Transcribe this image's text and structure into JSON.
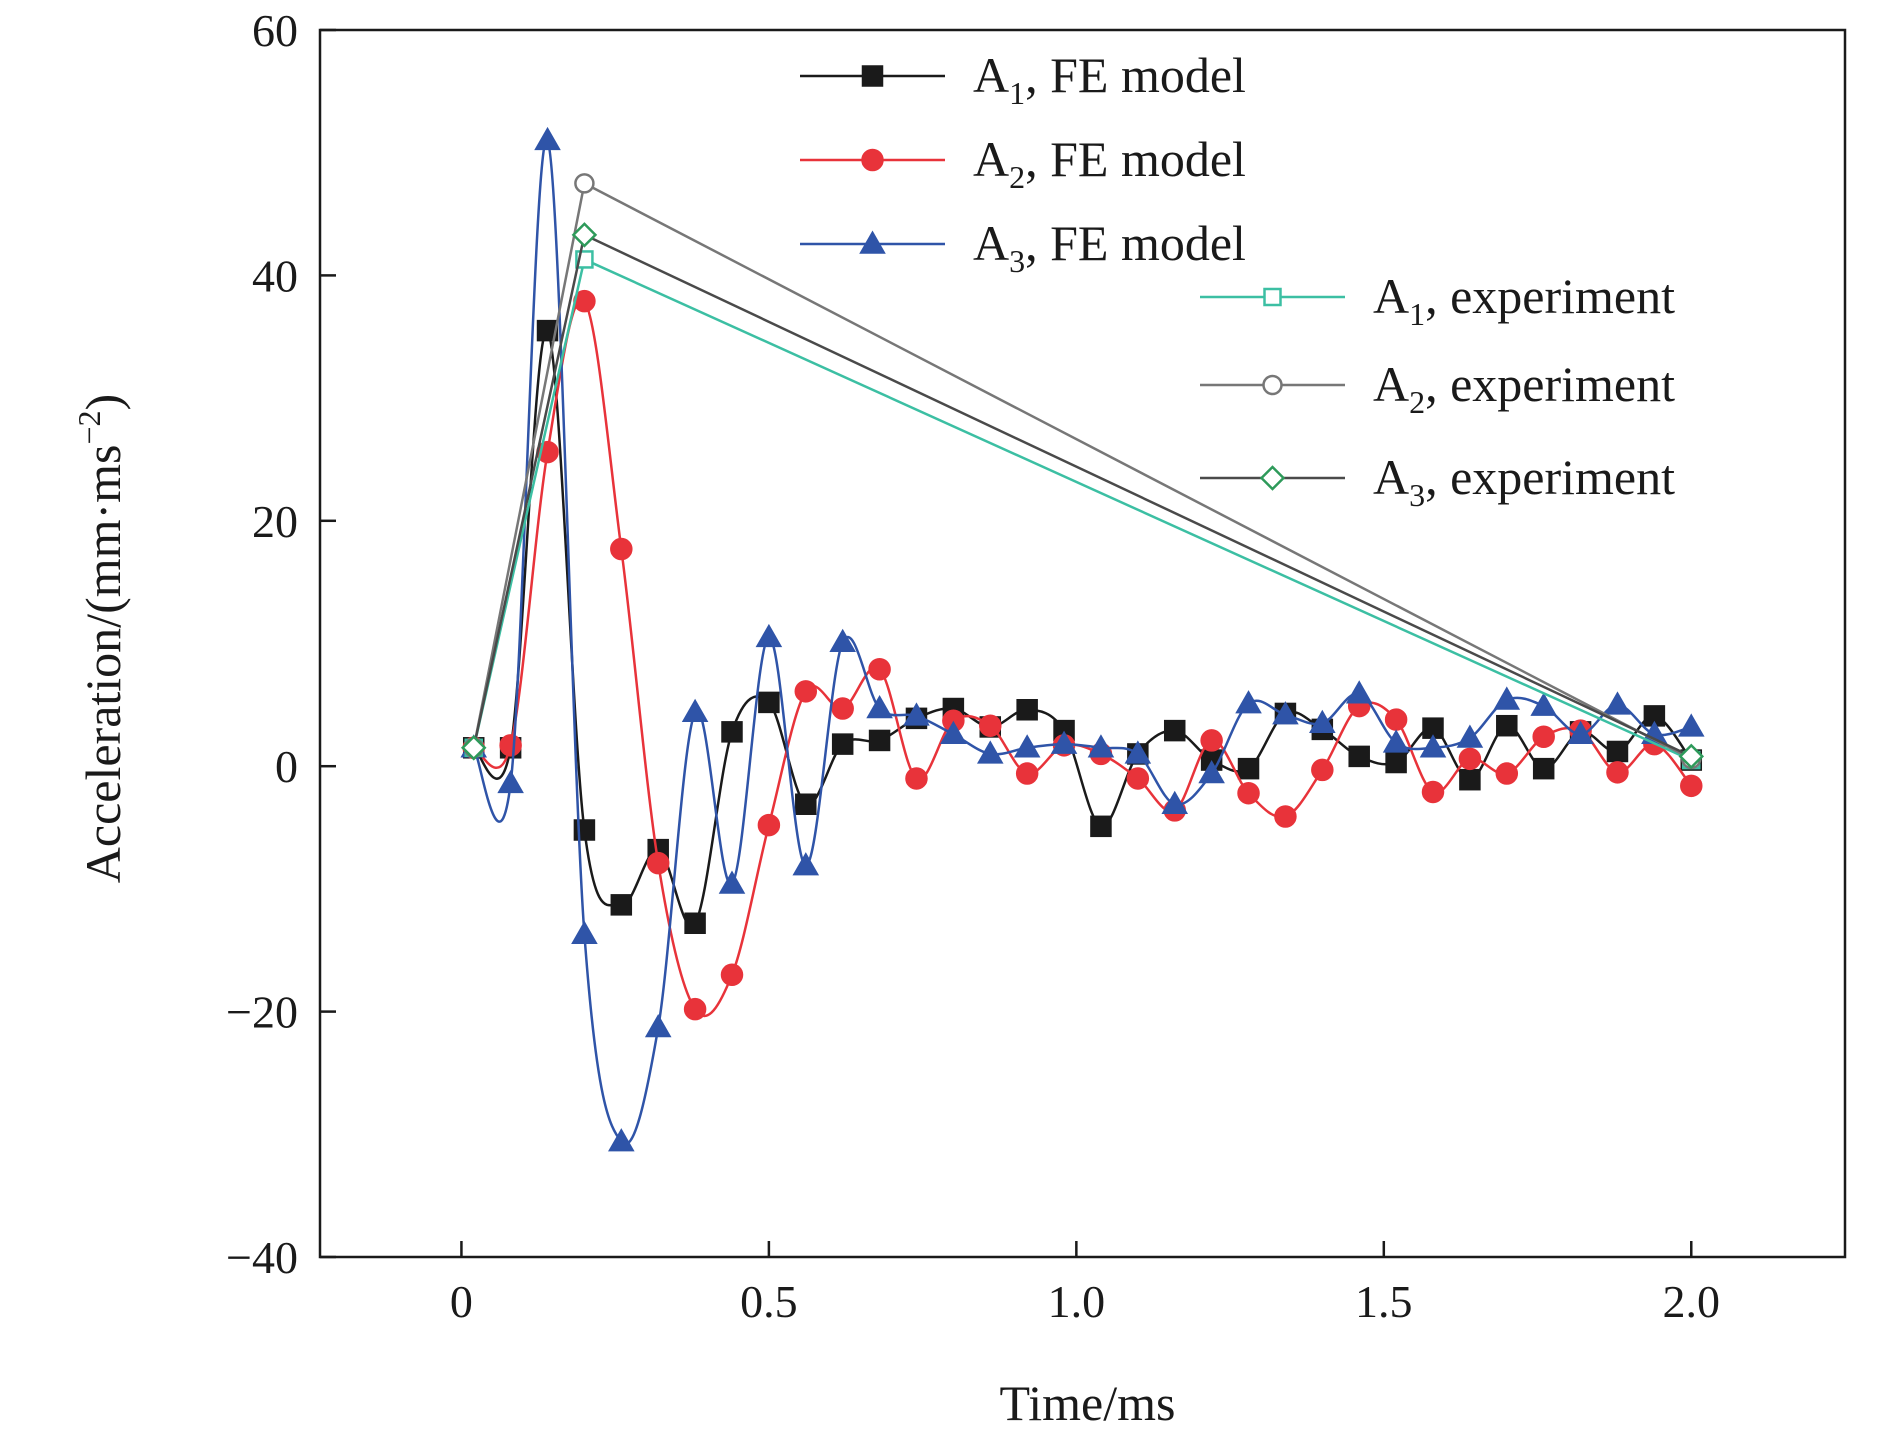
{
  "chart_data": {
    "type": "line",
    "title": "",
    "xlabel": "Time/ms",
    "ylabel": "Acceleration/(mm·ms",
    "ylabel_sup": "−2",
    "ylabel_close": ")",
    "xlim": [
      -0.23,
      2.25
    ],
    "ylim": [
      -40,
      60
    ],
    "xticks": [
      0,
      0.5,
      1.0,
      1.5,
      2.0
    ],
    "xtick_labels": [
      "0",
      "0.5",
      "1.0",
      "1.5",
      "2.0"
    ],
    "yticks": [
      -40,
      -20,
      0,
      20,
      40,
      60
    ],
    "ytick_labels": [
      "−40",
      "−20",
      "0",
      "20",
      "40",
      "60"
    ],
    "legend_position": "top-right",
    "series": [
      {
        "name": "A1, FE model",
        "legend_main": "A",
        "legend_sub": "1",
        "legend_rest": ", FE model",
        "color": "#1a1a1a",
        "marker": "square-filled",
        "smooth": true,
        "x": [
          0.02,
          0.08,
          0.14,
          0.2,
          0.26,
          0.32,
          0.38,
          0.44,
          0.5,
          0.56,
          0.62,
          0.68,
          0.74,
          0.8,
          0.86,
          0.92,
          0.98,
          1.04,
          1.1,
          1.16,
          1.22,
          1.28,
          1.34,
          1.4,
          1.46,
          1.52,
          1.58,
          1.64,
          1.7,
          1.76,
          1.82,
          1.88,
          1.94,
          2.0
        ],
        "y": [
          1.5,
          1.5,
          35.5,
          -5.2,
          -11.3,
          -6.8,
          -12.8,
          2.8,
          5.2,
          -3.1,
          1.8,
          2.1,
          3.9,
          4.7,
          3.2,
          4.6,
          2.9,
          -4.9,
          1.0,
          2.9,
          0.5,
          -0.2,
          4.3,
          3.0,
          0.8,
          0.3,
          3.1,
          -1.1,
          3.3,
          -0.2,
          2.8,
          1.2,
          4.1,
          0.5
        ]
      },
      {
        "name": "A2, FE model",
        "legend_main": "A",
        "legend_sub": "2",
        "legend_rest": ", FE model",
        "color": "#e8333a",
        "marker": "circle-filled",
        "smooth": true,
        "x": [
          0.02,
          0.08,
          0.14,
          0.2,
          0.26,
          0.32,
          0.38,
          0.44,
          0.5,
          0.56,
          0.62,
          0.68,
          0.74,
          0.8,
          0.86,
          0.92,
          0.98,
          1.04,
          1.1,
          1.16,
          1.22,
          1.28,
          1.34,
          1.4,
          1.46,
          1.52,
          1.58,
          1.64,
          1.7,
          1.76,
          1.82,
          1.88,
          1.94,
          2.0
        ],
        "y": [
          1.5,
          1.7,
          25.6,
          37.9,
          17.7,
          -7.9,
          -19.8,
          -17.0,
          -4.8,
          6.1,
          4.7,
          7.9,
          -1.0,
          3.7,
          3.3,
          -0.6,
          1.7,
          1.0,
          -1.0,
          -3.6,
          2.1,
          -2.2,
          -4.1,
          -0.3,
          4.9,
          3.8,
          -2.1,
          0.6,
          -0.6,
          2.4,
          2.9,
          -0.5,
          1.8,
          -1.6
        ]
      },
      {
        "name": "A3, FE model",
        "legend_main": "A",
        "legend_sub": "3",
        "legend_rest": ", FE model",
        "color": "#2f54a8",
        "marker": "triangle-filled",
        "smooth": true,
        "x": [
          0.02,
          0.08,
          0.14,
          0.2,
          0.26,
          0.32,
          0.38,
          0.44,
          0.5,
          0.56,
          0.62,
          0.68,
          0.74,
          0.8,
          0.86,
          0.92,
          0.98,
          1.04,
          1.1,
          1.16,
          1.22,
          1.28,
          1.34,
          1.4,
          1.46,
          1.52,
          1.58,
          1.64,
          1.7,
          1.76,
          1.82,
          1.88,
          1.94,
          2.0
        ],
        "y": [
          1.5,
          -1.4,
          51.0,
          -13.7,
          -30.6,
          -21.3,
          4.4,
          -9.6,
          10.5,
          -8.1,
          10.1,
          4.7,
          4.1,
          2.6,
          1.0,
          1.5,
          1.8,
          1.5,
          1.0,
          -3.1,
          -0.6,
          5.1,
          4.2,
          3.5,
          5.9,
          1.9,
          1.5,
          2.3,
          5.4,
          4.9,
          2.6,
          5.0,
          2.6,
          3.2
        ]
      },
      {
        "name": "A1, experiment",
        "legend_main": "A",
        "legend_sub": "1",
        "legend_rest": ", experiment",
        "color": "#3cbfa3",
        "marker": "square-open",
        "smooth": false,
        "x": [
          0.02,
          0.2,
          2.0
        ],
        "y": [
          1.5,
          41.3,
          0.5
        ]
      },
      {
        "name": "A2, experiment",
        "legend_main": "A",
        "legend_sub": "2",
        "legend_rest": ", experiment",
        "color": "#777777",
        "marker": "circle-open",
        "smooth": false,
        "x": [
          0.02,
          0.2,
          2.0
        ],
        "y": [
          1.5,
          47.5,
          0.6
        ]
      },
      {
        "name": "A3, experiment",
        "legend_main": "A",
        "legend_sub": "3",
        "legend_rest": ", experiment",
        "color": "#4a4a4a",
        "marker": "diamond-open",
        "smooth": false,
        "marker_color": "#2e9a5a",
        "x": [
          0.02,
          0.2,
          2.0
        ],
        "y": [
          1.5,
          43.3,
          0.8
        ]
      }
    ]
  }
}
